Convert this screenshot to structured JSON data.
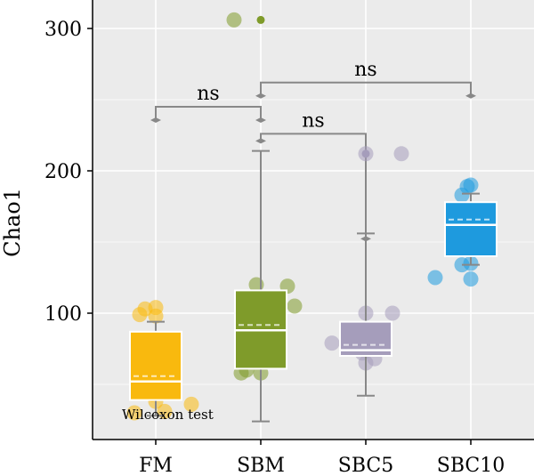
{
  "chart_data": {
    "type": "box",
    "ylabel": "Chao1",
    "xlabel": "",
    "ylim": [
      0,
      330
    ],
    "yticks": [
      100,
      200,
      300
    ],
    "categories": [
      "FM",
      "SBM",
      "SBC5",
      "SBC10"
    ],
    "colors": {
      "FM": "#F9B90E",
      "SBM": "#7F9B2A",
      "SBC5": "#A59DBB",
      "SBC10": "#1E9ADE",
      "panel_bg": "#EBEBEB",
      "grid": "#FFFFFF",
      "bracket": "#888888"
    },
    "groups": [
      {
        "name": "FM",
        "box": {
          "whisker_low": 28,
          "q1": 39,
          "median": 52,
          "q3": 87,
          "whisker_high": 94
        },
        "outliers": [],
        "points": [
          104,
          103,
          99,
          98,
          51,
          48,
          43,
          38,
          36,
          31,
          30
        ]
      },
      {
        "name": "SBM",
        "box": {
          "whisker_low": 24,
          "q1": 61,
          "median": 88,
          "q3": 116,
          "whisker_high": 214
        },
        "outliers": [
          306
        ],
        "points": [
          306,
          120,
          119,
          105,
          70,
          60,
          58,
          58
        ]
      },
      {
        "name": "SBC5",
        "box": {
          "whisker_low": 42,
          "q1": 70,
          "median": 74,
          "q3": 94,
          "whisker_high": 156
        },
        "outliers": [
          212
        ],
        "points": [
          212,
          212,
          100,
          100,
          79,
          72,
          68,
          65
        ]
      },
      {
        "name": "SBC10",
        "box": {
          "whisker_low": 134,
          "q1": 140,
          "median": 162,
          "q3": 178,
          "whisker_high": 184
        },
        "outliers": [],
        "points": [
          190,
          189,
          183,
          165,
          135,
          134,
          125,
          124
        ]
      }
    ],
    "comparisons": [
      {
        "from": "FM",
        "to": "SBM",
        "y": 245,
        "label": "ns"
      },
      {
        "from": "SBM",
        "to": "SBC10",
        "y": 262,
        "label": "ns"
      },
      {
        "from": "SBM",
        "to": "SBC5",
        "y": 226,
        "label": "ns"
      }
    ],
    "test_note": "Wilcoxon test"
  }
}
